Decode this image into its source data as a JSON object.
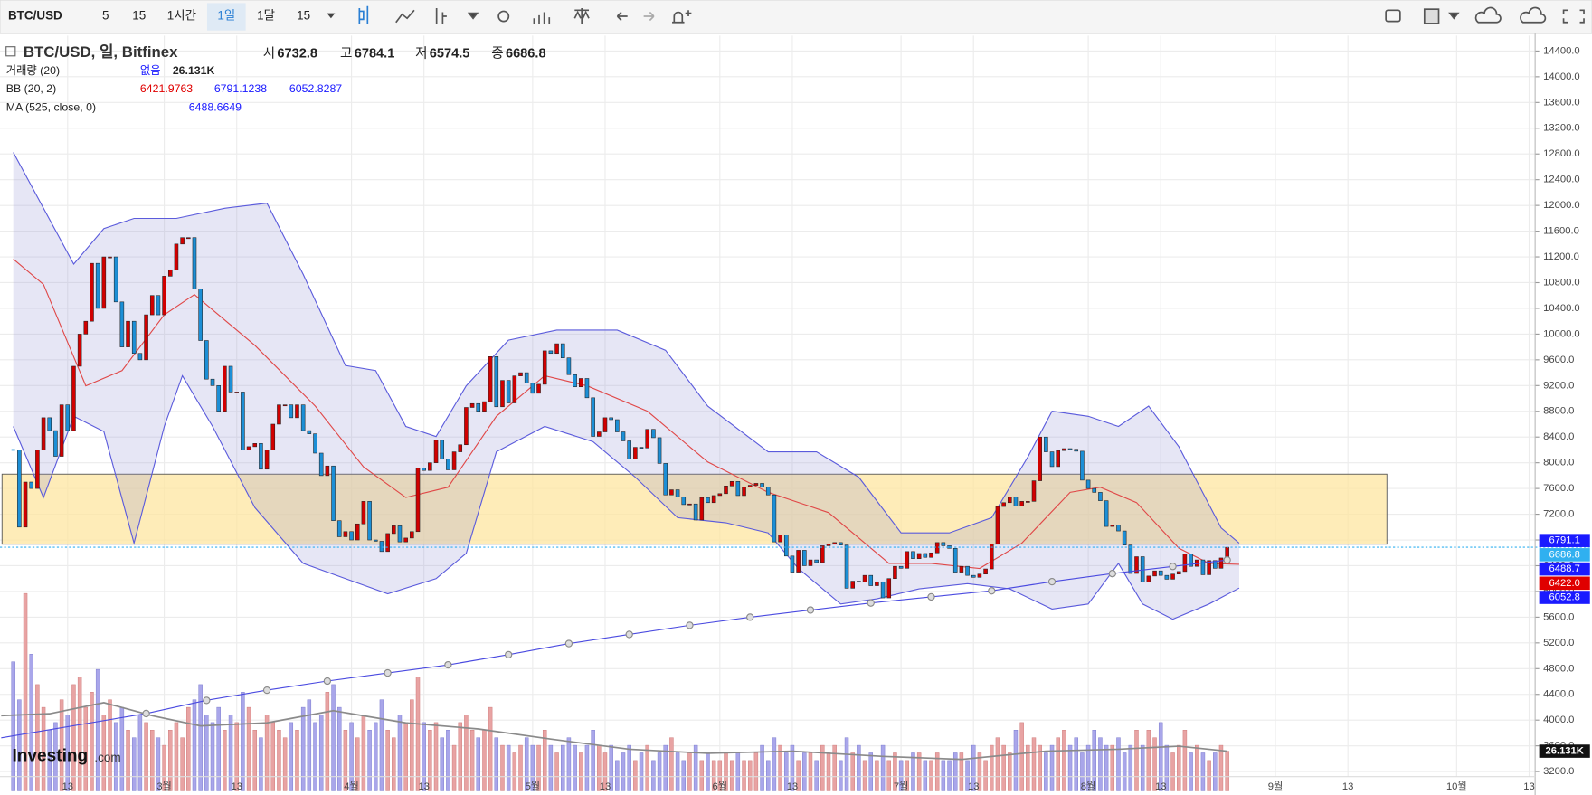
{
  "toolbar": {
    "symbol": "BTC/USD",
    "intervals": [
      "5",
      "15",
      "1시간",
      "1일",
      "1달",
      "15"
    ]
  },
  "chart_data": {
    "type": "candlestick",
    "legend": {
      "title": "BTC/USD, 일, Bitfinex",
      "ohlc": [
        "시",
        "6732.8",
        "고",
        "6784.1",
        "저",
        "6574.5",
        "종",
        "6686.8"
      ],
      "volume": [
        "거래량 (20)",
        "없음",
        "26.131K"
      ],
      "bb": [
        "BB (20, 2)",
        "6421.9763",
        "6791.1238",
        "6052.8287"
      ],
      "ma": [
        "MA (525, close, 0)",
        "6488.6649"
      ]
    },
    "close": [
      8200,
      7000,
      7700,
      7600,
      8200,
      8700,
      8500,
      8100,
      8900,
      8500,
      9500,
      10000,
      10200,
      11100,
      10400,
      11200,
      11200,
      10500,
      9800,
      10200,
      9700,
      9600,
      10300,
      10600,
      10300,
      10900,
      11000,
      11400,
      11500,
      11500,
      10700,
      9900,
      9300,
      9200,
      8800,
      9500,
      9100,
      9100,
      8200,
      8250,
      8300,
      7900,
      8200,
      8600,
      8900,
      8900,
      8700,
      8900,
      8500,
      8450,
      8150,
      7800,
      7950,
      7100,
      6850,
      6930,
      6800,
      7050,
      7400,
      6800,
      6780,
      6620,
      6900,
      7020,
      6770,
      6830,
      6930,
      7920,
      7880,
      8000,
      8350,
      8060,
      7890,
      8170,
      8280,
      8860,
      8920,
      8800,
      8950,
      9650,
      8870,
      9280,
      8930,
      9350,
      9400,
      9240,
      9080,
      9220,
      9740,
      9700,
      9850,
      9630,
      9370,
      9180,
      9310,
      9010,
      8410,
      8480,
      8700,
      8670,
      8480,
      8340,
      8060,
      8240,
      8230,
      8520,
      8390,
      7990,
      7500,
      7580,
      7470,
      7350,
      7360,
      7110,
      7460,
      7380,
      7490,
      7520,
      7640,
      7710,
      7490,
      7620,
      7650,
      7680,
      7620,
      7500,
      6770,
      6880,
      6550,
      6300,
      6640,
      6400,
      6490,
      6450,
      6710,
      6740,
      6760,
      6720,
      6050,
      6160,
      6150,
      6250,
      6090,
      6150,
      5900,
      6200,
      6390,
      6360,
      6620,
      6510,
      6590,
      6530,
      6600,
      6760,
      6710,
      6670,
      6300,
      6390,
      6250,
      6220,
      6270,
      6350,
      6740,
      7320,
      7380,
      7470,
      7330,
      7400,
      7400,
      7720,
      8400,
      8170,
      7940,
      8190,
      8220,
      8210,
      8180,
      7730,
      7600,
      7540,
      7410,
      7010,
      7030,
      6940,
      6720,
      6280,
      6540,
      6150,
      6240,
      6320,
      6250,
      6190,
      6270,
      6310,
      6580,
      6390,
      6490,
      6260,
      6480,
      6360,
      6520,
      6686.8
    ],
    "volume": [
      85,
      60,
      130,
      90,
      70,
      55,
      40,
      45,
      60,
      50,
      70,
      75,
      55,
      65,
      80,
      50,
      60,
      45,
      55,
      40,
      35,
      50,
      45,
      40,
      35,
      30,
      40,
      45,
      35,
      55,
      60,
      70,
      50,
      45,
      55,
      40,
      50,
      45,
      65,
      55,
      40,
      35,
      50,
      45,
      40,
      35,
      45,
      40,
      55,
      60,
      45,
      50,
      65,
      70,
      55,
      40,
      45,
      35,
      50,
      40,
      45,
      60,
      40,
      35,
      50,
      45,
      60,
      75,
      45,
      40,
      45,
      35,
      40,
      30,
      45,
      50,
      40,
      35,
      40,
      55,
      35,
      30,
      30,
      25,
      30,
      35,
      30,
      30,
      40,
      30,
      25,
      30,
      35,
      30,
      25,
      30,
      40,
      30,
      25,
      30,
      20,
      25,
      30,
      20,
      25,
      30,
      20,
      25,
      30,
      35,
      25,
      20,
      25,
      30,
      20,
      25,
      20,
      20,
      25,
      20,
      25,
      20,
      20,
      25,
      30,
      20,
      35,
      30,
      25,
      30,
      20,
      25,
      25,
      20,
      30,
      25,
      30,
      20,
      35,
      25,
      30,
      20,
      25,
      20,
      30,
      20,
      25,
      20,
      20,
      25,
      25,
      20,
      20,
      25,
      20,
      20,
      25,
      25,
      20,
      30,
      25,
      20,
      30,
      35,
      30,
      25,
      40,
      45,
      30,
      35,
      30,
      25,
      30,
      35,
      40,
      30,
      35,
      25,
      30,
      40,
      35,
      30,
      30,
      35,
      25,
      30,
      40,
      30,
      40,
      35,
      45,
      30,
      25,
      30,
      40,
      25,
      30,
      25,
      20,
      25,
      30,
      26.131
    ],
    "xlim": [
      -2.2,
      252
    ],
    "xticks": [
      {
        "value": 9,
        "label": "13"
      },
      {
        "value": 25,
        "label": "3월"
      },
      {
        "value": 37,
        "label": "13"
      },
      {
        "value": 56,
        "label": "4월"
      },
      {
        "value": 68,
        "label": "13"
      },
      {
        "value": 86,
        "label": "5월"
      },
      {
        "value": 98,
        "label": "13"
      },
      {
        "value": 117,
        "label": "6월"
      },
      {
        "value": 129,
        "label": "13"
      },
      {
        "value": 147,
        "label": "7월"
      },
      {
        "value": 159,
        "label": "13"
      },
      {
        "value": 178,
        "label": "8월"
      },
      {
        "value": 190,
        "label": "13"
      },
      {
        "value": 209,
        "label": "9월"
      },
      {
        "value": 221,
        "label": "13"
      },
      {
        "value": 239,
        "label": "10월"
      },
      {
        "value": 251,
        "label": "13"
      }
    ],
    "ylim": [
      2900,
      14640
    ],
    "yticks": [
      {
        "value": 3200,
        "label": "3200.0"
      },
      {
        "value": 3600,
        "label": "3600.0"
      },
      {
        "value": 4000,
        "label": "4000.0"
      },
      {
        "value": 4400,
        "label": "4400.0"
      },
      {
        "value": 4800,
        "label": "4800.0"
      },
      {
        "value": 5200,
        "label": "5200.0"
      },
      {
        "value": 5600,
        "label": "5600.0"
      },
      {
        "value": 6000,
        "label": "6000.0"
      },
      {
        "value": 6400,
        "label": "6400.0"
      },
      {
        "value": 6800,
        "label": "6800.0"
      },
      {
        "value": 7200,
        "label": "7200.0"
      },
      {
        "value": 7600,
        "label": "7600.0"
      },
      {
        "value": 8000,
        "label": "8000.0"
      },
      {
        "value": 8400,
        "label": "8400.0"
      },
      {
        "value": 8800,
        "label": "8800.0"
      },
      {
        "value": 9200,
        "label": "9200.0"
      },
      {
        "value": 9600,
        "label": "9600.0"
      },
      {
        "value": 10000,
        "label": "10000.0"
      },
      {
        "value": 10400,
        "label": "10400.0"
      },
      {
        "value": 10800,
        "label": "10800.0"
      },
      {
        "value": 11200,
        "label": "11200.0"
      },
      {
        "value": 11600,
        "label": "11600.0"
      },
      {
        "value": 12000,
        "label": "12000.0"
      },
      {
        "value": 12400,
        "label": "12400.0"
      },
      {
        "value": 12800,
        "label": "12800.0"
      },
      {
        "value": 13200,
        "label": "13200.0"
      },
      {
        "value": 13600,
        "label": "13600.0"
      },
      {
        "value": 14000,
        "label": "14000.0"
      },
      {
        "value": 14400,
        "label": "14400.0"
      }
    ],
    "vlim": [
      0,
      131
    ],
    "grid": true,
    "up_color": "#d10000",
    "down_color": "#1c8fd6",
    "up_volume_color": "#e8a3a3",
    "down_volume_color": "#a9a6ea",
    "bb": [
      {
        "color": "#5b5bdc",
        "x": [
          0,
          10,
          15,
          20,
          27,
          35,
          42,
          48,
          55,
          60,
          65,
          70,
          75,
          82,
          90,
          100,
          108,
          115,
          125,
          133,
          140,
          147,
          155,
          162,
          168,
          172,
          178,
          183,
          188,
          193,
          200,
          203
        ],
        "values": [
          12823,
          11088,
          11640,
          11798,
          11798,
          11956,
          12035,
          10930,
          9511,
          9432,
          8565,
          8407,
          9196,
          9906,
          10063,
          10063,
          9748,
          8880,
          8170,
          8170,
          7776,
          6909,
          6909,
          7146,
          8092,
          8802,
          8723,
          8565,
          8880,
          8249,
          6988,
          6751
        ]
      },
      {
        "color": "#e04848",
        "x": [
          0,
          5,
          12,
          18,
          25,
          30,
          40,
          50,
          58,
          65,
          72,
          80,
          88,
          95,
          105,
          115,
          125,
          135,
          145,
          152,
          160,
          167,
          175,
          180,
          186,
          193,
          198,
          203
        ],
        "values": [
          11167,
          10773,
          9196,
          9432,
          10300,
          10615,
          9826,
          8880,
          7934,
          7461,
          7619,
          8723,
          9353,
          9196,
          8802,
          8013,
          7540,
          7225,
          6436,
          6436,
          6357,
          6751,
          7540,
          7619,
          7382,
          6672,
          6436,
          6422
        ]
      },
      {
        "color": "#5b5bdc",
        "x": [
          0,
          5,
          10,
          15,
          20,
          25,
          28,
          33,
          40,
          48,
          55,
          62,
          70,
          75,
          80,
          88,
          96,
          103,
          110,
          118,
          125,
          130,
          137,
          143,
          150,
          158,
          165,
          172,
          178,
          183,
          187,
          192,
          198,
          203
        ],
        "values": [
          8565,
          7461,
          8723,
          8486,
          6751,
          8565,
          9353,
          8565,
          7304,
          6436,
          6200,
          5963,
          6200,
          6593,
          8170,
          8565,
          8328,
          7776,
          7146,
          7067,
          6909,
          6357,
          5805,
          5885,
          6040,
          6120,
          6040,
          5726,
          5805,
          6436,
          5805,
          5569,
          5805,
          6052.8
        ]
      }
    ],
    "ma": {
      "color": "#4a4ae0",
      "x": [
        -2,
        22,
        32,
        42,
        52,
        62,
        72,
        82,
        92,
        102,
        112,
        122,
        132,
        142,
        152,
        162,
        172,
        182,
        192,
        201
      ],
      "values": [
        3724,
        4102,
        4307,
        4465,
        4607,
        4733,
        4859,
        5017,
        5190,
        5332,
        5474,
        5600,
        5711,
        5821,
        5916,
        6010,
        6152,
        6278,
        6389,
        6488.7
      ]
    },
    "volume_ma": {
      "color": "#8a8a8a",
      "x": [
        -2,
        6,
        15,
        23,
        31,
        42,
        53,
        65,
        77,
        89,
        102,
        115,
        129,
        144,
        157,
        171,
        183,
        193,
        201
      ],
      "values": [
        49.5,
        50.8,
        58.1,
        49.5,
        42.8,
        44.8,
        52.8,
        44.8,
        40.8,
        34.1,
        27.4,
        24.7,
        26.1,
        22.7,
        20.7,
        26.1,
        27.4,
        29.4,
        26.1
      ]
    },
    "axis_labels": {
      "values": [
        6791.1,
        6686.8,
        6488.7,
        6422.0,
        6052.8
      ],
      "value_labels": [
        "6791.1",
        "6686.8",
        "6488.7",
        "6422.0",
        "6052.8"
      ],
      "colors": [
        "#1a1aff",
        "#30b0f0",
        "#1a1aff",
        "#e00000",
        "#1a1aff"
      ]
    },
    "volume_label": {
      "value": 26.131,
      "label": "26.131K"
    },
    "watermark": [
      "Investing",
      ".com"
    ]
  }
}
